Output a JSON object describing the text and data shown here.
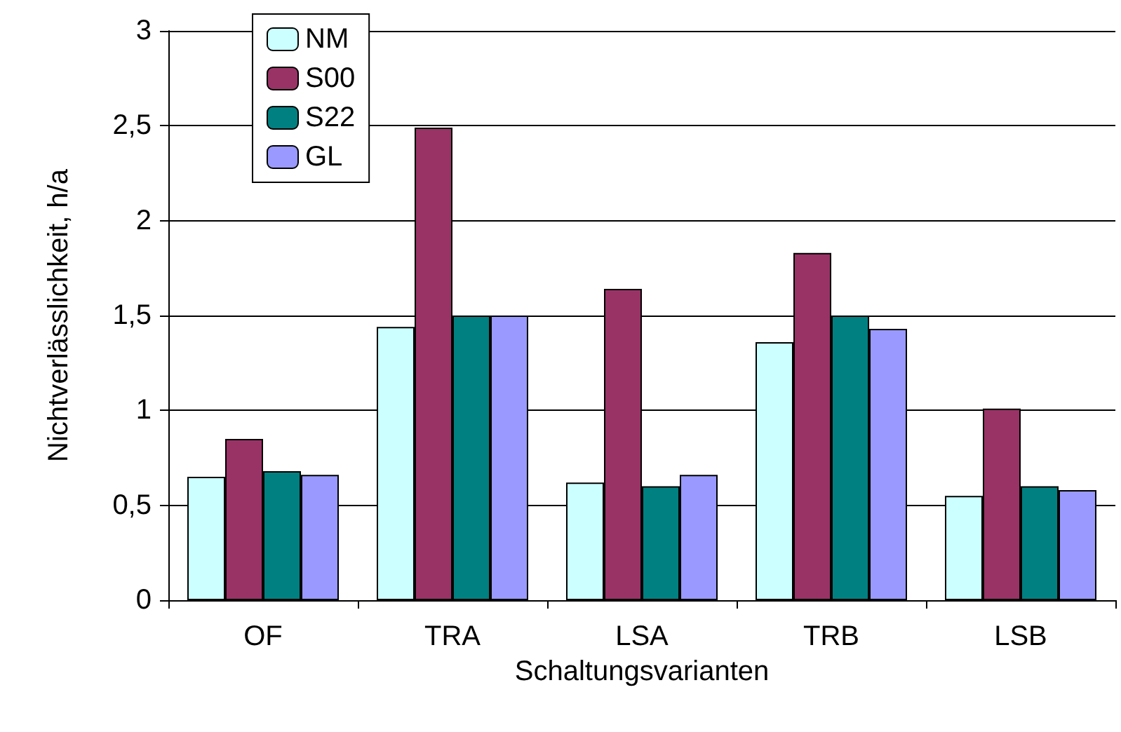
{
  "chart_data": {
    "type": "bar",
    "xlabel": "Schaltungsvarianten",
    "ylabel": "Nichtverlässlichkeit, h/a",
    "categories": [
      "OF",
      "TRA",
      "LSA",
      "TRB",
      "LSB"
    ],
    "series": [
      {
        "name": "NM",
        "color": "#ccffff",
        "values": [
          0.65,
          1.44,
          0.62,
          1.36,
          0.55
        ]
      },
      {
        "name": "S00",
        "color": "#993366",
        "values": [
          0.85,
          2.49,
          1.64,
          1.83,
          1.01
        ]
      },
      {
        "name": "S22",
        "color": "#008080",
        "values": [
          0.68,
          1.5,
          0.6,
          1.5,
          0.6
        ]
      },
      {
        "name": "GL",
        "color": "#9999ff",
        "values": [
          0.66,
          1.5,
          0.66,
          1.43,
          0.58
        ]
      }
    ],
    "ylim": [
      0,
      3
    ],
    "yticks": [
      0,
      {
        "value": 0.5,
        "label": "0,5"
      },
      1,
      {
        "value": 1.5,
        "label": "1,5"
      },
      2,
      {
        "value": 2.5,
        "label": "2,5"
      },
      3
    ],
    "grid": "y",
    "legend": "top left"
  }
}
